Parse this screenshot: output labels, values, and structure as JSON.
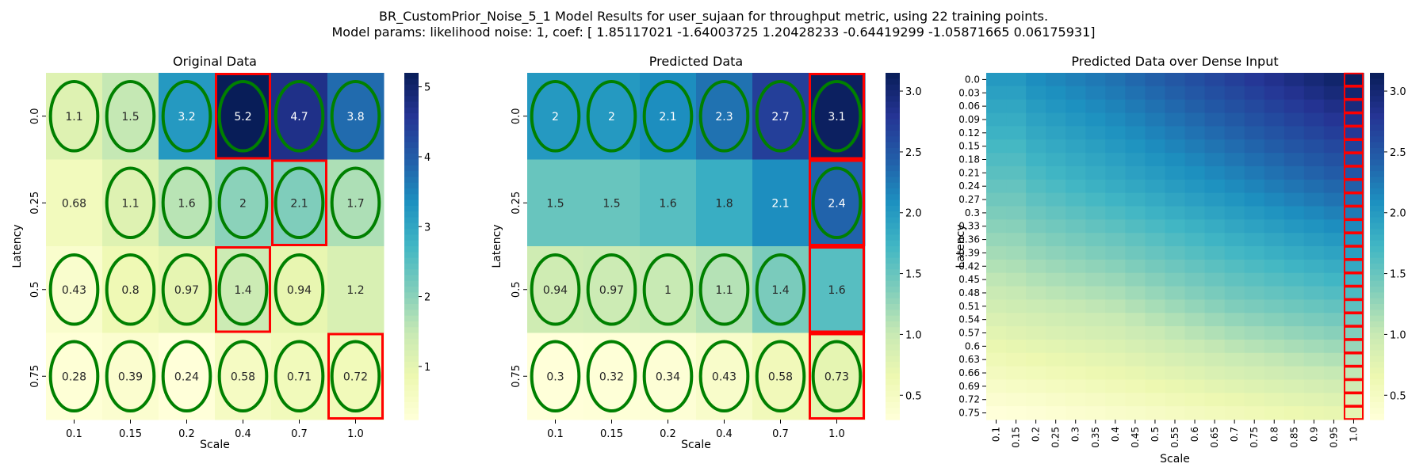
{
  "figure": {
    "title_line1": "BR_CustomPrior_Noise_5_1 Model Results for user_sujaan for throughput metric, using 22 training points.",
    "title_line2": "Model params: likelihood noise: 1, coef: [ 1.85117021 -1.64003725  1.20428233 -0.64419299 -1.05871665  0.06175931]"
  },
  "colors": {
    "colormap": "YlGnBu",
    "stops": [
      "#ffffd9",
      "#edf8b1",
      "#c7e9b4",
      "#7fcdbb",
      "#41b6c4",
      "#1d91c0",
      "#225ea8",
      "#253494",
      "#081d58"
    ],
    "ellipse": "#008000",
    "highlight": "#ff0000"
  },
  "chart_data": [
    {
      "type": "heatmap",
      "title": "Original Data",
      "xlabel": "Scale",
      "ylabel": "Latency",
      "x_ticks": [
        "0.1",
        "0.15",
        "0.2",
        "0.4",
        "0.7",
        "1.0"
      ],
      "y_ticks": [
        "0.0",
        "0.25",
        "0.5",
        "0.75"
      ],
      "values": [
        [
          1.1,
          1.5,
          3.2,
          5.2,
          4.7,
          3.8
        ],
        [
          0.68,
          1.1,
          1.6,
          2,
          2.1,
          1.7
        ],
        [
          0.43,
          0.8,
          0.97,
          1.4,
          0.94,
          1.2
        ],
        [
          0.28,
          0.39,
          0.24,
          0.58,
          0.71,
          0.72
        ]
      ],
      "cell_labels": [
        [
          "1.1",
          "1.5",
          "3.2",
          "5.2",
          "4.7",
          "3.8"
        ],
        [
          "0.68",
          "1.1",
          "1.6",
          "2",
          "2.1",
          "1.7"
        ],
        [
          "0.43",
          "0.8",
          "0.97",
          "1.4",
          "0.94",
          "1.2"
        ],
        [
          "0.28",
          "0.39",
          "0.24",
          "0.58",
          "0.71",
          "0.72"
        ]
      ],
      "ellipse_cells": [
        [
          0,
          0
        ],
        [
          0,
          1
        ],
        [
          0,
          2
        ],
        [
          0,
          3
        ],
        [
          0,
          4
        ],
        [
          0,
          5
        ],
        [
          1,
          1
        ],
        [
          1,
          2
        ],
        [
          1,
          3
        ],
        [
          1,
          4
        ],
        [
          1,
          5
        ],
        [
          2,
          0
        ],
        [
          2,
          1
        ],
        [
          2,
          2
        ],
        [
          2,
          3
        ],
        [
          2,
          4
        ],
        [
          3,
          0
        ],
        [
          3,
          1
        ],
        [
          3,
          2
        ],
        [
          3,
          3
        ],
        [
          3,
          4
        ],
        [
          3,
          5
        ]
      ],
      "highlight_cells": [
        [
          0,
          3
        ],
        [
          1,
          4
        ],
        [
          2,
          3
        ],
        [
          3,
          5
        ]
      ],
      "colorbar": {
        "min": 0.24,
        "max": 5.2,
        "ticks": [
          1,
          2,
          3,
          4,
          5
        ],
        "tick_labels": [
          "1",
          "2",
          "3",
          "4",
          "5"
        ]
      }
    },
    {
      "type": "heatmap",
      "title": "Predicted Data",
      "xlabel": "Scale",
      "ylabel": "Latency",
      "x_ticks": [
        "0.1",
        "0.15",
        "0.2",
        "0.4",
        "0.7",
        "1.0"
      ],
      "y_ticks": [
        "0.0",
        "0.25",
        "0.5",
        "0.75"
      ],
      "values": [
        [
          2,
          2,
          2.1,
          2.3,
          2.7,
          3.1
        ],
        [
          1.5,
          1.5,
          1.6,
          1.8,
          2.1,
          2.4
        ],
        [
          0.94,
          0.97,
          1,
          1.1,
          1.4,
          1.6
        ],
        [
          0.3,
          0.32,
          0.34,
          0.43,
          0.58,
          0.73
        ]
      ],
      "cell_labels": [
        [
          "2",
          "2",
          "2.1",
          "2.3",
          "2.7",
          "3.1"
        ],
        [
          "1.5",
          "1.5",
          "1.6",
          "1.8",
          "2.1",
          "2.4"
        ],
        [
          "0.94",
          "0.97",
          "1",
          "1.1",
          "1.4",
          "1.6"
        ],
        [
          "0.3",
          "0.32",
          "0.34",
          "0.43",
          "0.58",
          "0.73"
        ]
      ],
      "ellipse_cells": [
        [
          0,
          0
        ],
        [
          0,
          1
        ],
        [
          0,
          2
        ],
        [
          0,
          3
        ],
        [
          0,
          4
        ],
        [
          0,
          5
        ],
        [
          1,
          5
        ],
        [
          2,
          0
        ],
        [
          2,
          1
        ],
        [
          2,
          2
        ],
        [
          2,
          3
        ],
        [
          2,
          4
        ],
        [
          3,
          0
        ],
        [
          3,
          1
        ],
        [
          3,
          2
        ],
        [
          3,
          3
        ],
        [
          3,
          4
        ],
        [
          3,
          5
        ]
      ],
      "highlight_cells": [
        [
          0,
          5
        ],
        [
          1,
          5
        ],
        [
          2,
          5
        ],
        [
          3,
          5
        ]
      ],
      "colorbar": {
        "min": 0.3,
        "max": 3.15,
        "ticks": [
          0.5,
          1.0,
          1.5,
          2.0,
          2.5,
          3.0
        ],
        "tick_labels": [
          "0.5",
          "1.0",
          "1.5",
          "2.0",
          "2.5",
          "3.0"
        ]
      }
    },
    {
      "type": "heatmap",
      "title": "Predicted Data over Dense Input",
      "xlabel": "Scale",
      "ylabel": "Latency",
      "x_ticks": [
        "0.1",
        "0.15",
        "0.2",
        "0.25",
        "0.3",
        "0.35",
        "0.4",
        "0.45",
        "0.5",
        "0.55",
        "0.6",
        "0.65",
        "0.7",
        "0.75",
        "0.8",
        "0.85",
        "0.9",
        "0.95",
        "1.0"
      ],
      "y_ticks": [
        "0.0",
        "0.03",
        "0.06",
        "0.09",
        "0.12",
        "0.15",
        "0.18",
        "0.21",
        "0.24",
        "0.27",
        "0.3",
        "0.33",
        "0.36",
        "0.39",
        "0.42",
        "0.45",
        "0.48",
        "0.51",
        "0.54",
        "0.57",
        "0.6",
        "0.63",
        "0.66",
        "0.69",
        "0.72",
        "0.75"
      ],
      "coarse_x": [
        0.1,
        0.15,
        0.2,
        0.4,
        0.7,
        1.0
      ],
      "coarse_y": [
        0.0,
        0.25,
        0.5,
        0.75
      ],
      "coarse_values": [
        [
          2,
          2,
          2.1,
          2.3,
          2.7,
          3.1
        ],
        [
          1.5,
          1.5,
          1.6,
          1.8,
          2.1,
          2.4
        ],
        [
          0.94,
          0.97,
          1,
          1.1,
          1.4,
          1.6
        ],
        [
          0.3,
          0.32,
          0.34,
          0.43,
          0.58,
          0.73
        ]
      ],
      "highlight_column": "1.0",
      "colorbar": {
        "min": 0.3,
        "max": 3.15,
        "ticks": [
          0.5,
          1.0,
          1.5,
          2.0,
          2.5,
          3.0
        ],
        "tick_labels": [
          "0.5",
          "1.0",
          "1.5",
          "2.0",
          "2.5",
          "3.0"
        ]
      }
    }
  ]
}
